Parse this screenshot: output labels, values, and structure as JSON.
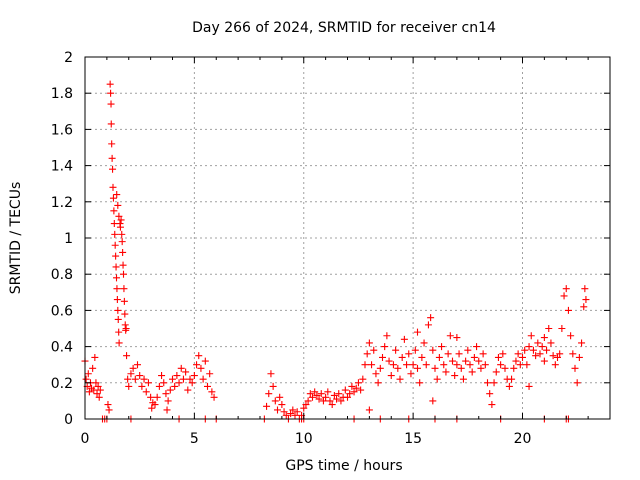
{
  "chart_data": {
    "type": "scatter",
    "title": "Day 266 of 2024, SRMTID for receiver cn14",
    "xlabel": "GPS time / hours",
    "ylabel": "SRMTID / TECUs",
    "xlim": [
      0,
      24
    ],
    "ylim": [
      0,
      2
    ],
    "xticks": [
      0,
      5,
      10,
      15,
      20
    ],
    "xtick_labels": [
      "0",
      "5",
      "10",
      "15",
      "20"
    ],
    "yticks": [
      0,
      0.2,
      0.4,
      0.6,
      0.8,
      1,
      1.2,
      1.4,
      1.6,
      1.8,
      2
    ],
    "ytick_labels": [
      "0",
      "0.2",
      "0.4",
      "0.6",
      "0.8",
      "1",
      "1.2",
      "1.4",
      "1.6",
      "1.8",
      "2"
    ],
    "grid": true,
    "marker": "+",
    "series": [
      {
        "name": "SRMTID",
        "color": "#ff0000",
        "points": [
          [
            0.0,
            0.32
          ],
          [
            0.05,
            0.22
          ],
          [
            0.1,
            0.18
          ],
          [
            0.15,
            0.25
          ],
          [
            0.2,
            0.15
          ],
          [
            0.25,
            0.2
          ],
          [
            0.3,
            0.17
          ],
          [
            0.35,
            0.28
          ],
          [
            0.4,
            0.16
          ],
          [
            0.45,
            0.34
          ],
          [
            0.5,
            0.2
          ],
          [
            0.55,
            0.14
          ],
          [
            0.6,
            0.18
          ],
          [
            0.65,
            0.12
          ],
          [
            0.7,
            0.16
          ],
          [
            0.8,
            0.0
          ],
          [
            0.9,
            0.0
          ],
          [
            1.0,
            0.0
          ],
          [
            1.05,
            0.08
          ],
          [
            1.1,
            0.05
          ],
          [
            1.15,
            1.85
          ],
          [
            1.17,
            1.8
          ],
          [
            1.19,
            1.74
          ],
          [
            1.2,
            1.63
          ],
          [
            1.22,
            1.52
          ],
          [
            1.24,
            1.44
          ],
          [
            1.26,
            1.38
          ],
          [
            1.28,
            1.28
          ],
          [
            1.3,
            1.22
          ],
          [
            1.32,
            1.15
          ],
          [
            1.34,
            1.08
          ],
          [
            1.36,
            1.02
          ],
          [
            1.38,
            0.96
          ],
          [
            1.4,
            0.9
          ],
          [
            1.42,
            0.84
          ],
          [
            1.44,
            0.78
          ],
          [
            1.46,
            0.72
          ],
          [
            1.48,
            0.66
          ],
          [
            1.5,
            0.6
          ],
          [
            1.52,
            0.55
          ],
          [
            1.54,
            0.48
          ],
          [
            1.56,
            0.42
          ],
          [
            1.45,
            1.24
          ],
          [
            1.5,
            1.18
          ],
          [
            1.55,
            1.12
          ],
          [
            1.6,
            1.08
          ],
          [
            1.62,
            1.06
          ],
          [
            1.65,
            1.1
          ],
          [
            1.68,
            1.02
          ],
          [
            1.7,
            0.98
          ],
          [
            1.72,
            0.92
          ],
          [
            1.74,
            0.85
          ],
          [
            1.76,
            0.8
          ],
          [
            1.78,
            0.72
          ],
          [
            1.8,
            0.65
          ],
          [
            1.82,
            0.58
          ],
          [
            1.84,
            0.52
          ],
          [
            1.86,
            0.49
          ],
          [
            1.88,
            0.5
          ],
          [
            1.9,
            0.35
          ],
          [
            1.95,
            0.22
          ],
          [
            2.0,
            0.18
          ],
          [
            2.1,
            0.25
          ],
          [
            2.2,
            0.28
          ],
          [
            2.3,
            0.22
          ],
          [
            2.4,
            0.3
          ],
          [
            2.5,
            0.24
          ],
          [
            2.6,
            0.18
          ],
          [
            2.7,
            0.22
          ],
          [
            2.8,
            0.15
          ],
          [
            2.9,
            0.2
          ],
          [
            3.0,
            0.12
          ],
          [
            3.05,
            0.06
          ],
          [
            3.1,
            0.09
          ],
          [
            3.2,
            0.08
          ],
          [
            3.3,
            0.12
          ],
          [
            3.4,
            0.18
          ],
          [
            3.5,
            0.24
          ],
          [
            3.6,
            0.2
          ],
          [
            3.7,
            0.14
          ],
          [
            3.75,
            0.05
          ],
          [
            3.8,
            0.1
          ],
          [
            3.9,
            0.16
          ],
          [
            4.0,
            0.22
          ],
          [
            4.1,
            0.18
          ],
          [
            4.2,
            0.24
          ],
          [
            4.3,
            0.2
          ],
          [
            4.4,
            0.28
          ],
          [
            4.5,
            0.22
          ],
          [
            4.6,
            0.26
          ],
          [
            4.7,
            0.16
          ],
          [
            4.8,
            0.22
          ],
          [
            4.9,
            0.2
          ],
          [
            5.0,
            0.24
          ],
          [
            5.1,
            0.3
          ],
          [
            5.2,
            0.35
          ],
          [
            5.3,
            0.28
          ],
          [
            5.4,
            0.22
          ],
          [
            5.5,
            0.32
          ],
          [
            5.6,
            0.18
          ],
          [
            5.7,
            0.25
          ],
          [
            5.8,
            0.15
          ],
          [
            5.9,
            0.12
          ],
          [
            4.3,
            0.0
          ],
          [
            8.3,
            0.07
          ],
          [
            8.4,
            0.14
          ],
          [
            8.5,
            0.25
          ],
          [
            8.6,
            0.18
          ],
          [
            8.7,
            0.1
          ],
          [
            8.8,
            0.05
          ],
          [
            8.9,
            0.12
          ],
          [
            9.0,
            0.08
          ],
          [
            9.1,
            0.04
          ],
          [
            9.2,
            0.02
          ],
          [
            9.3,
            0.0
          ],
          [
            9.4,
            0.03
          ],
          [
            9.5,
            0.05
          ],
          [
            9.6,
            0.02
          ],
          [
            9.7,
            0.04
          ],
          [
            9.8,
            0.0
          ],
          [
            9.9,
            0.02
          ],
          [
            10.0,
            0.06
          ],
          [
            10.1,
            0.08
          ],
          [
            10.2,
            0.1
          ],
          [
            10.3,
            0.14
          ],
          [
            10.4,
            0.12
          ],
          [
            10.5,
            0.15
          ],
          [
            10.6,
            0.13
          ],
          [
            10.7,
            0.11
          ],
          [
            10.8,
            0.14
          ],
          [
            10.9,
            0.1
          ],
          [
            11.0,
            0.12
          ],
          [
            11.1,
            0.15
          ],
          [
            11.2,
            0.1
          ],
          [
            11.3,
            0.08
          ],
          [
            11.4,
            0.13
          ],
          [
            11.5,
            0.11
          ],
          [
            11.6,
            0.14
          ],
          [
            11.7,
            0.1
          ],
          [
            11.8,
            0.12
          ],
          [
            11.9,
            0.16
          ],
          [
            12.0,
            0.12
          ],
          [
            12.1,
            0.14
          ],
          [
            12.2,
            0.18
          ],
          [
            12.3,
            0.15
          ],
          [
            12.4,
            0.17
          ],
          [
            12.5,
            0.2
          ],
          [
            12.6,
            0.16
          ],
          [
            12.7,
            0.22
          ],
          [
            12.8,
            0.3
          ],
          [
            12.9,
            0.36
          ],
          [
            13.0,
            0.42
          ],
          [
            13.1,
            0.3
          ],
          [
            13.2,
            0.38
          ],
          [
            13.3,
            0.25
          ],
          [
            13.4,
            0.2
          ],
          [
            13.5,
            0.28
          ],
          [
            13.6,
            0.34
          ],
          [
            13.7,
            0.4
          ],
          [
            13.8,
            0.46
          ],
          [
            13.9,
            0.32
          ],
          [
            14.0,
            0.24
          ],
          [
            14.1,
            0.3
          ],
          [
            14.2,
            0.38
          ],
          [
            14.3,
            0.28
          ],
          [
            14.4,
            0.22
          ],
          [
            14.5,
            0.34
          ],
          [
            14.6,
            0.44
          ],
          [
            14.7,
            0.3
          ],
          [
            14.8,
            0.36
          ],
          [
            14.9,
            0.25
          ],
          [
            15.0,
            0.3
          ],
          [
            15.1,
            0.38
          ],
          [
            15.2,
            0.28
          ],
          [
            15.3,
            0.2
          ],
          [
            15.4,
            0.34
          ],
          [
            15.5,
            0.42
          ],
          [
            15.6,
            0.3
          ],
          [
            15.7,
            0.52
          ],
          [
            15.8,
            0.56
          ],
          [
            15.9,
            0.38
          ],
          [
            16.0,
            0.28
          ],
          [
            16.1,
            0.22
          ],
          [
            16.2,
            0.34
          ],
          [
            16.3,
            0.4
          ],
          [
            16.4,
            0.3
          ],
          [
            16.5,
            0.26
          ],
          [
            16.6,
            0.36
          ],
          [
            16.7,
            0.46
          ],
          [
            16.8,
            0.32
          ],
          [
            16.9,
            0.24
          ],
          [
            17.0,
            0.3
          ],
          [
            17.1,
            0.36
          ],
          [
            17.2,
            0.28
          ],
          [
            17.3,
            0.22
          ],
          [
            17.4,
            0.32
          ],
          [
            17.5,
            0.38
          ],
          [
            17.6,
            0.3
          ],
          [
            17.7,
            0.26
          ],
          [
            17.8,
            0.34
          ],
          [
            17.9,
            0.4
          ],
          [
            18.0,
            0.32
          ],
          [
            18.1,
            0.28
          ],
          [
            18.2,
            0.36
          ],
          [
            18.3,
            0.3
          ],
          [
            18.4,
            0.2
          ],
          [
            18.5,
            0.14
          ],
          [
            18.6,
            0.08
          ],
          [
            18.7,
            0.2
          ],
          [
            18.8,
            0.26
          ],
          [
            18.9,
            0.34
          ],
          [
            19.0,
            0.3
          ],
          [
            19.1,
            0.36
          ],
          [
            19.2,
            0.28
          ],
          [
            19.3,
            0.22
          ],
          [
            19.4,
            0.18
          ],
          [
            19.5,
            0.22
          ],
          [
            19.6,
            0.28
          ],
          [
            19.7,
            0.32
          ],
          [
            19.8,
            0.36
          ],
          [
            19.9,
            0.3
          ],
          [
            20.0,
            0.34
          ],
          [
            20.1,
            0.38
          ],
          [
            20.2,
            0.3
          ],
          [
            20.3,
            0.4
          ],
          [
            20.4,
            0.46
          ],
          [
            20.5,
            0.38
          ],
          [
            20.6,
            0.35
          ],
          [
            20.7,
            0.42
          ],
          [
            20.8,
            0.36
          ],
          [
            20.9,
            0.4
          ],
          [
            21.0,
            0.32
          ],
          [
            21.1,
            0.38
          ],
          [
            21.2,
            0.5
          ],
          [
            21.3,
            0.42
          ],
          [
            21.4,
            0.35
          ],
          [
            21.5,
            0.3
          ],
          [
            21.6,
            0.34
          ],
          [
            21.7,
            0.36
          ],
          [
            21.8,
            0.5
          ],
          [
            21.9,
            0.68
          ],
          [
            22.0,
            0.72
          ],
          [
            22.1,
            0.6
          ],
          [
            22.2,
            0.46
          ],
          [
            22.3,
            0.36
          ],
          [
            22.4,
            0.28
          ],
          [
            22.5,
            0.2
          ],
          [
            22.6,
            0.34
          ],
          [
            22.7,
            0.42
          ],
          [
            22.8,
            0.62
          ],
          [
            22.85,
            0.72
          ],
          [
            22.9,
            0.66
          ],
          [
            15.2,
            0.48
          ],
          [
            15.9,
            0.1
          ],
          [
            17.0,
            0.45
          ],
          [
            13.0,
            0.05
          ],
          [
            20.3,
            0.18
          ],
          [
            21.0,
            0.45
          ],
          [
            22.0,
            0.0
          ],
          [
            21.0,
            0.0
          ],
          [
            19.0,
            0.0
          ],
          [
            17.0,
            0.0
          ],
          [
            16.0,
            0.0
          ],
          [
            14.8,
            0.0
          ],
          [
            13.5,
            0.0
          ],
          [
            12.3,
            0.0
          ],
          [
            2.1,
            0.0
          ],
          [
            5.5,
            0.0
          ],
          [
            6.0,
            0.0
          ],
          [
            8.2,
            0.0
          ],
          [
            9.9,
            0.0
          ],
          [
            10.0,
            0.0
          ],
          [
            22.1,
            0.0
          ]
        ]
      }
    ]
  }
}
